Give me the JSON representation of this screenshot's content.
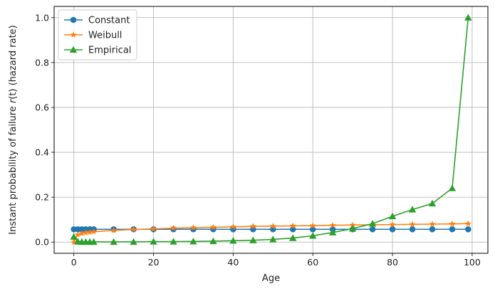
{
  "chart_data": {
    "type": "line",
    "xlabel": "Age",
    "ylabel_prefix": "Instant probability of failure ",
    "ylabel_var": "r",
    "ylabel_suffix": "(t) (hazard rate)",
    "xlim": [
      -4.95,
      103.95
    ],
    "ylim": [
      -0.05,
      1.05
    ],
    "xticks": [
      0,
      20,
      40,
      60,
      80,
      100
    ],
    "yticks": [
      0.0,
      0.2,
      0.4,
      0.6,
      0.8,
      1.0
    ],
    "xtick_labels": [
      "0",
      "20",
      "40",
      "60",
      "80",
      "100"
    ],
    "ytick_labels": [
      "0.0",
      "0.2",
      "0.4",
      "0.6",
      "0.8",
      "1.0"
    ],
    "grid": true,
    "legend_position": "upper-left",
    "series": [
      {
        "name": "Constant",
        "color": "#1f77b4",
        "marker": "circle",
        "x": [
          0,
          1,
          2,
          3,
          4,
          5,
          10,
          15,
          20,
          25,
          30,
          35,
          40,
          45,
          50,
          55,
          60,
          65,
          70,
          75,
          80,
          85,
          90,
          95,
          99
        ],
        "y": [
          0.057,
          0.057,
          0.057,
          0.057,
          0.057,
          0.057,
          0.057,
          0.057,
          0.057,
          0.057,
          0.057,
          0.057,
          0.057,
          0.057,
          0.057,
          0.057,
          0.057,
          0.057,
          0.057,
          0.057,
          0.057,
          0.057,
          0.057,
          0.057,
          0.057
        ]
      },
      {
        "name": "Weibull",
        "color": "#ff7f0e",
        "marker": "star",
        "x": [
          0,
          1,
          2,
          3,
          4,
          5,
          10,
          15,
          20,
          25,
          30,
          35,
          40,
          45,
          50,
          55,
          60,
          65,
          70,
          75,
          80,
          85,
          90,
          95,
          99
        ],
        "y": [
          0.0,
          0.033,
          0.038,
          0.042,
          0.044,
          0.046,
          0.052,
          0.056,
          0.059,
          0.062,
          0.064,
          0.066,
          0.068,
          0.07,
          0.071,
          0.072,
          0.073,
          0.075,
          0.076,
          0.077,
          0.078,
          0.079,
          0.08,
          0.081,
          0.082
        ]
      },
      {
        "name": "Empirical",
        "color": "#2ca02c",
        "marker": "triangle",
        "x": [
          0,
          1,
          2,
          3,
          4,
          5,
          10,
          15,
          20,
          25,
          30,
          35,
          40,
          45,
          50,
          55,
          60,
          65,
          70,
          75,
          80,
          85,
          90,
          95,
          99
        ],
        "y": [
          0.024,
          0.002,
          0.001,
          0.001,
          0.001,
          0.001,
          0.001,
          0.001,
          0.002,
          0.002,
          0.003,
          0.004,
          0.006,
          0.008,
          0.012,
          0.018,
          0.028,
          0.043,
          0.06,
          0.082,
          0.115,
          0.145,
          0.172,
          0.24,
          1.0
        ]
      }
    ]
  }
}
